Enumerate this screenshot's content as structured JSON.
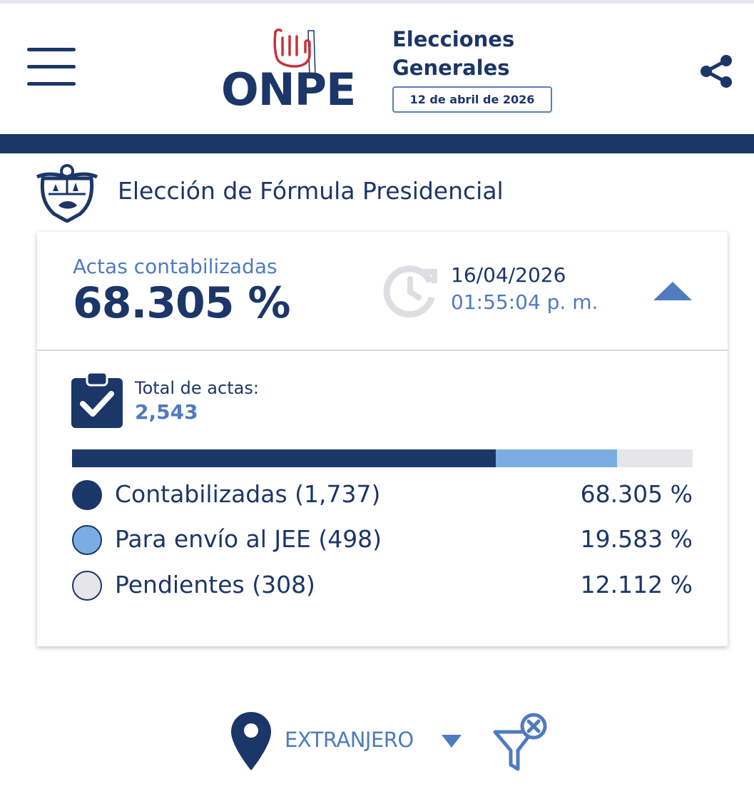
{
  "header": {
    "logo_text": "ONPE",
    "election_title_line1": "Elecciones",
    "election_title_line2": "Generales",
    "election_date": "12 de abril de 2026",
    "menu_icon": "hamburger-icon",
    "share_icon": "share-icon"
  },
  "section": {
    "title": "Elección de Fórmula Presidencial",
    "emblem_icon": "peru-coat-of-arms-icon"
  },
  "summary": {
    "actas_label": "Actas contabilizadas",
    "actas_value": "68.305 %",
    "update_date": "16/04/2026",
    "update_time": "01:55:04 p. m.",
    "collapse_icon": "caret-up-icon"
  },
  "totals": {
    "label": "Total de actas:",
    "value": "2,543"
  },
  "progress": {
    "contabilizadas_fraction": 0.68305,
    "envio_jee_fraction": 0.19583,
    "pendientes_fraction": 0.12112
  },
  "legend": [
    {
      "label": "Contabilizadas (1,737)",
      "percent": "68.305 %",
      "color": "#1b3668"
    },
    {
      "label": "Para envío al JEE (498)",
      "percent": "19.583 %",
      "color": "#7aaee2"
    },
    {
      "label": "Pendientes (308)",
      "percent": "12.112 %",
      "color": "#e6e6ea"
    }
  ],
  "filter": {
    "region": "EXTRANJERO",
    "location_icon": "map-pin-icon",
    "clear_filter_icon": "filter-clear-icon"
  },
  "colors": {
    "primary": "#1b3668",
    "accent": "#4f7bbf",
    "light_blue": "#7aaee2",
    "pending": "#e6e6ea",
    "logo_red": "#c8323b"
  }
}
